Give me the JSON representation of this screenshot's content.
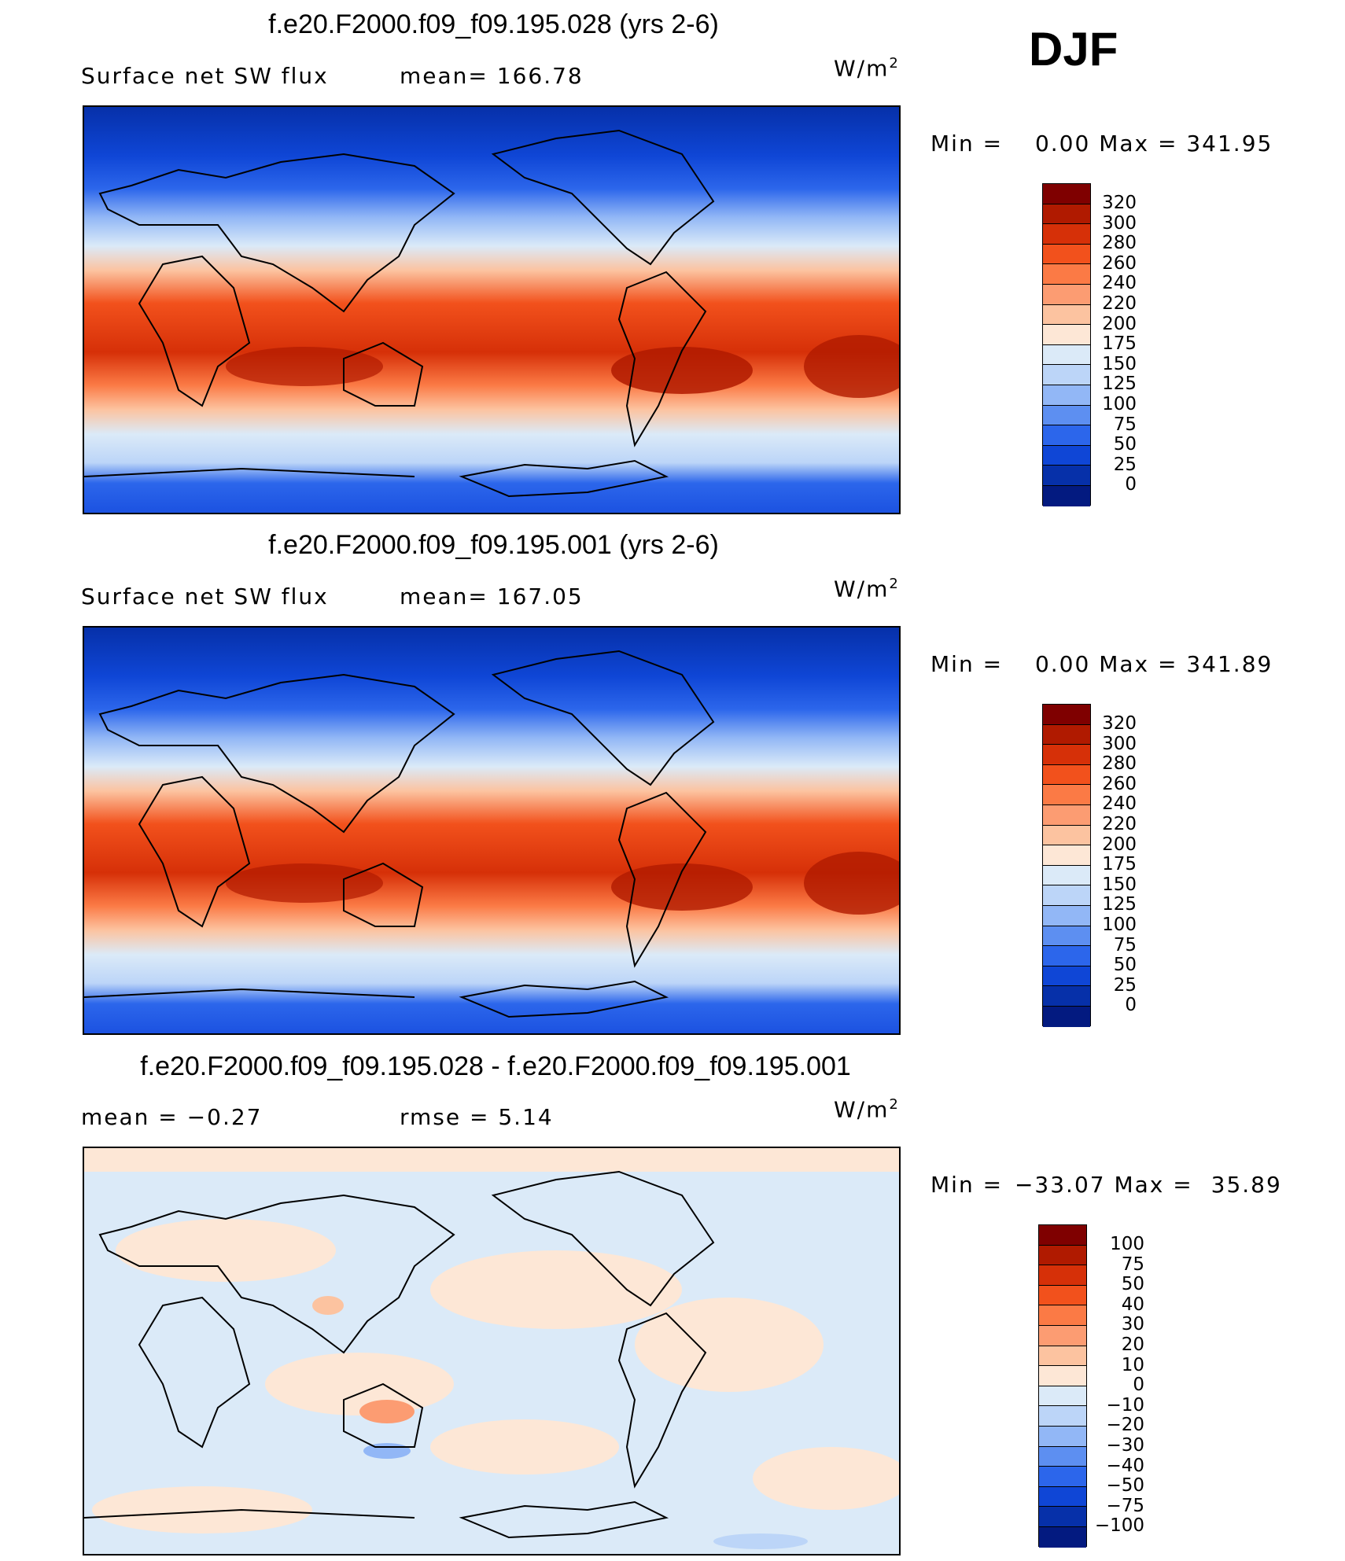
{
  "season": "DJF",
  "units": "W/m",
  "units_sup": "2",
  "panels": [
    {
      "title": "f.e20.F2000.f09_f09.195.028 (yrs 2-6)",
      "variable": "Surface net SW flux",
      "stat": "mean=  166.78",
      "minmax_label_min": "Min =",
      "minmax_min_value": "0.00",
      "minmax_label_max": "Max =",
      "minmax_max_value": "341.95"
    },
    {
      "title": "f.e20.F2000.f09_f09.195.001 (yrs 2-6)",
      "variable": "Surface net SW flux",
      "stat": "mean=  167.05",
      "minmax_label_min": "Min =",
      "minmax_min_value": "0.00",
      "minmax_label_max": "Max =",
      "minmax_max_value": "341.89"
    },
    {
      "title": "f.e20.F2000.f09_f09.195.028 - f.e20.F2000.f09_f09.195.001",
      "stat_left": "mean =   −0.27",
      "stat_right": "rmse =    5.14",
      "minmax_label_min": "Min =",
      "minmax_min_value": "−33.07",
      "minmax_label_max": "Max =",
      "minmax_max_value": "35.89"
    }
  ],
  "colorbar_abs": {
    "labels": [
      "320",
      "300",
      "280",
      "260",
      "240",
      "220",
      "200",
      "175",
      "150",
      "125",
      "100",
      "75",
      "50",
      "25",
      "0"
    ],
    "colors": [
      "#7f0000",
      "#b01a00",
      "#d63008",
      "#f2511c",
      "#fb7a45",
      "#fc9c72",
      "#fcc3a0",
      "#fde7d6",
      "#dbeaf8",
      "#bcd5f8",
      "#92b7f6",
      "#5d8ff1",
      "#2c66eb",
      "#0f46d6",
      "#0630a9",
      "#031a80"
    ]
  },
  "colorbar_diff": {
    "labels": [
      "100",
      "75",
      "50",
      "40",
      "30",
      "20",
      "10",
      "0",
      "−10",
      "−20",
      "−30",
      "−40",
      "−50",
      "−75",
      "−100"
    ],
    "colors": [
      "#7f0000",
      "#b01a00",
      "#d63008",
      "#f2511c",
      "#fb7a45",
      "#fc9c72",
      "#fcc3a0",
      "#fde7d6",
      "#dbeaf8",
      "#bcd5f8",
      "#92b7f6",
      "#5d8ff1",
      "#2c66eb",
      "#0f46d6",
      "#0630a9",
      "#031a80"
    ]
  }
}
